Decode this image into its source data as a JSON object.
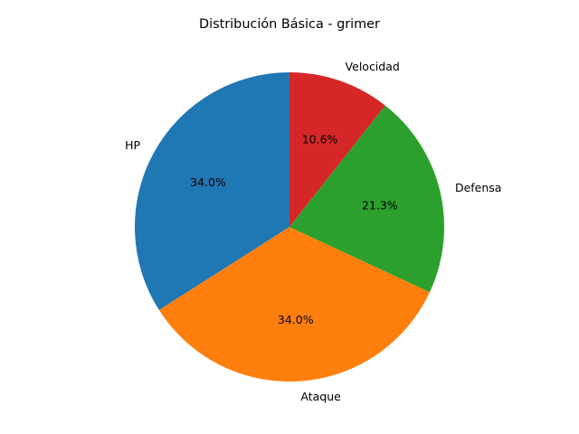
{
  "chart_data": {
    "type": "pie",
    "title": "Distribución Básica - grimer",
    "start_angle_deg": 90,
    "direction": "counterclockwise",
    "slices": [
      {
        "label": "HP",
        "value": 34.0,
        "pct_label": "34.0%",
        "color": "#1f77b4"
      },
      {
        "label": "Ataque",
        "value": 34.0,
        "pct_label": "34.0%",
        "color": "#ff7f0e"
      },
      {
        "label": "Defensa",
        "value": 21.3,
        "pct_label": "21.3%",
        "color": "#2ca02c"
      },
      {
        "label": "Velocidad",
        "value": 10.6,
        "pct_label": "10.6%",
        "color": "#d62728"
      }
    ]
  }
}
